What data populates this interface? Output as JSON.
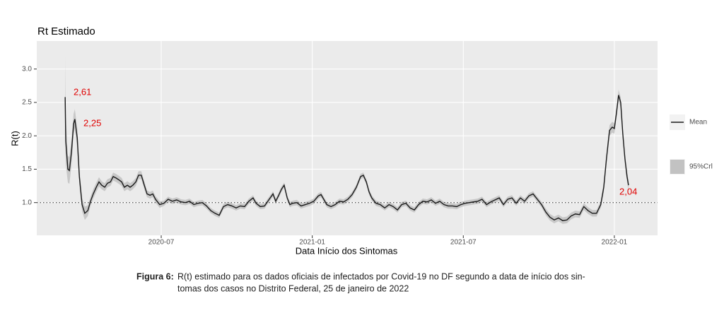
{
  "chart_data": {
    "type": "line",
    "title": "Rt Estimado",
    "x_label": "Data Início dos Sintomas",
    "y_label": "R(t)",
    "xlim": [
      2020.088,
      2022.143
    ],
    "xticks": [
      {
        "value": 2020.5,
        "label": "2020-07"
      },
      {
        "value": 2021.0,
        "label": "2021-01"
      },
      {
        "value": 2021.5,
        "label": "2021-07"
      },
      {
        "value": 2022.0,
        "label": "2022-01"
      }
    ],
    "ylim": [
      0.51,
      3.42
    ],
    "yticks": [
      {
        "value": 1,
        "label": "1.0"
      },
      {
        "value": 1.5,
        "label": "1.5"
      },
      {
        "value": 2,
        "label": "2.0"
      },
      {
        "value": 2.5,
        "label": "2.5"
      },
      {
        "value": 3,
        "label": "3.0"
      }
    ],
    "grid": true,
    "hline": 1,
    "x": [
      2020.182,
      2020.184,
      2020.191,
      2020.196,
      2020.203,
      2020.21,
      2020.214,
      2020.222,
      2020.229,
      2020.238,
      2020.247,
      2020.257,
      2020.266,
      2020.275,
      2020.285,
      2020.294,
      2020.303,
      2020.313,
      2020.322,
      2020.332,
      2020.341,
      2020.35,
      2020.36,
      2020.369,
      2020.378,
      2020.388,
      2020.397,
      2020.406,
      2020.416,
      2020.425,
      2020.434,
      2020.444,
      2020.453,
      2020.463,
      2020.472,
      2020.481,
      2020.495,
      2020.509,
      2020.523,
      2020.537,
      2020.551,
      2020.566,
      2020.58,
      2020.594,
      2020.608,
      2020.622,
      2020.636,
      2020.65,
      2020.664,
      2020.678,
      2020.692,
      2020.706,
      2020.72,
      2020.734,
      2020.748,
      2020.762,
      2020.776,
      2020.79,
      2020.804,
      2020.814,
      2020.828,
      2020.842,
      2020.856,
      2020.87,
      2020.879,
      2020.888,
      2020.898,
      2020.907,
      2020.917,
      2020.926,
      2020.935,
      2020.949,
      2020.963,
      2020.977,
      2020.991,
      2021.005,
      2021.02,
      2021.029,
      2021.038,
      2021.048,
      2021.062,
      2021.076,
      2021.09,
      2021.104,
      2021.118,
      2021.132,
      2021.146,
      2021.16,
      2021.169,
      2021.179,
      2021.188,
      2021.197,
      2021.211,
      2021.225,
      2021.24,
      2021.254,
      2021.268,
      2021.282,
      2021.296,
      2021.31,
      2021.324,
      2021.338,
      2021.352,
      2021.366,
      2021.38,
      2021.394,
      2021.408,
      2021.422,
      2021.436,
      2021.45,
      2021.464,
      2021.478,
      2021.492,
      2021.506,
      2021.52,
      2021.534,
      2021.548,
      2021.562,
      2021.577,
      2021.591,
      2021.605,
      2021.619,
      2021.633,
      2021.647,
      2021.661,
      2021.675,
      2021.689,
      2021.703,
      2021.717,
      2021.731,
      2021.745,
      2021.759,
      2021.773,
      2021.787,
      2021.801,
      2021.815,
      2021.829,
      2021.843,
      2021.857,
      2021.871,
      2021.885,
      2021.899,
      2021.913,
      2021.927,
      2021.941,
      2021.955,
      2021.965,
      2021.974,
      2021.984,
      2021.993,
      2022.0,
      2022.007,
      2022.014,
      2022.021,
      2022.028,
      2022.035,
      2022.042,
      2022.047
    ],
    "series": [
      {
        "name": "Mean",
        "color": "#1a1a1a",
        "values": [
          2.58,
          1.92,
          1.5,
          1.48,
          1.76,
          2.18,
          2.25,
          1.97,
          1.39,
          0.97,
          0.84,
          0.88,
          1.02,
          1.13,
          1.23,
          1.31,
          1.26,
          1.23,
          1.29,
          1.31,
          1.39,
          1.37,
          1.34,
          1.31,
          1.23,
          1.26,
          1.23,
          1.26,
          1.31,
          1.41,
          1.41,
          1.26,
          1.13,
          1.11,
          1.13,
          1.05,
          0.97,
          0.99,
          1.05,
          1.02,
          1.04,
          1.01,
          1.0,
          1.02,
          0.97,
          0.99,
          1.0,
          0.95,
          0.88,
          0.84,
          0.81,
          0.94,
          0.97,
          0.95,
          0.92,
          0.95,
          0.94,
          1.02,
          1.07,
          0.99,
          0.94,
          0.95,
          1.04,
          1.13,
          1.02,
          1.1,
          1.2,
          1.26,
          1.07,
          0.97,
          0.99,
          1.0,
          0.95,
          0.97,
          0.99,
          1.02,
          1.1,
          1.12,
          1.05,
          0.97,
          0.94,
          0.97,
          1.02,
          1.01,
          1.05,
          1.12,
          1.23,
          1.39,
          1.41,
          1.31,
          1.16,
          1.07,
          0.99,
          0.97,
          0.92,
          0.97,
          0.94,
          0.89,
          0.97,
          0.99,
          0.92,
          0.89,
          0.97,
          1.02,
          1.01,
          1.04,
          0.99,
          1.02,
          0.97,
          0.95,
          0.95,
          0.94,
          0.97,
          0.99,
          1.0,
          1.01,
          1.02,
          1.05,
          0.97,
          1.01,
          1.04,
          1.07,
          0.97,
          1.05,
          1.07,
          0.99,
          1.07,
          1.02,
          1.1,
          1.13,
          1.05,
          0.97,
          0.86,
          0.78,
          0.74,
          0.77,
          0.73,
          0.74,
          0.8,
          0.83,
          0.82,
          0.94,
          0.88,
          0.84,
          0.84,
          0.97,
          1.23,
          1.66,
          2.08,
          2.13,
          2.11,
          2.34,
          2.61,
          2.5,
          2.03,
          1.66,
          1.39,
          1.26
        ]
      },
      {
        "name": "95%Crl",
        "color": "#c2c2c2",
        "lower": [
          1.98,
          1.57,
          1.3,
          1.28,
          1.56,
          2.03,
          2.1,
          1.82,
          1.27,
          0.87,
          0.74,
          0.8,
          0.95,
          1.06,
          1.16,
          1.24,
          1.2,
          1.17,
          1.23,
          1.25,
          1.33,
          1.31,
          1.28,
          1.25,
          1.17,
          1.2,
          1.17,
          1.2,
          1.25,
          1.35,
          1.35,
          1.2,
          1.08,
          1.06,
          1.08,
          1.0,
          0.92,
          0.95,
          1.01,
          0.98,
          1.0,
          0.97,
          0.96,
          0.98,
          0.93,
          0.95,
          0.96,
          0.91,
          0.84,
          0.8,
          0.77,
          0.9,
          0.93,
          0.91,
          0.88,
          0.91,
          0.9,
          0.98,
          1.03,
          0.95,
          0.9,
          0.91,
          1.0,
          1.09,
          0.98,
          1.06,
          1.16,
          1.22,
          1.03,
          0.93,
          0.95,
          0.96,
          0.91,
          0.93,
          0.95,
          0.98,
          1.06,
          1.08,
          1.01,
          0.93,
          0.9,
          0.93,
          0.98,
          0.97,
          1.01,
          1.08,
          1.19,
          1.35,
          1.37,
          1.27,
          1.12,
          1.03,
          0.95,
          0.93,
          0.88,
          0.93,
          0.9,
          0.85,
          0.93,
          0.95,
          0.88,
          0.85,
          0.93,
          0.98,
          0.97,
          1.0,
          0.95,
          0.98,
          0.93,
          0.91,
          0.91,
          0.9,
          0.93,
          0.95,
          0.96,
          0.97,
          0.98,
          1.01,
          0.93,
          0.97,
          1.0,
          1.03,
          0.93,
          1.01,
          1.03,
          0.95,
          1.03,
          0.98,
          1.06,
          1.09,
          1.01,
          0.93,
          0.81,
          0.73,
          0.69,
          0.72,
          0.68,
          0.69,
          0.75,
          0.78,
          0.77,
          0.89,
          0.83,
          0.79,
          0.79,
          0.92,
          1.15,
          1.58,
          2.0,
          2.05,
          2.03,
          2.26,
          2.53,
          2.42,
          1.95,
          1.58,
          1.31,
          1.18
        ],
        "upper": [
          3.18,
          2.27,
          1.7,
          1.68,
          1.96,
          2.33,
          2.4,
          2.12,
          1.51,
          1.07,
          0.94,
          0.96,
          1.09,
          1.2,
          1.3,
          1.38,
          1.32,
          1.29,
          1.35,
          1.37,
          1.45,
          1.43,
          1.4,
          1.37,
          1.29,
          1.32,
          1.29,
          1.32,
          1.37,
          1.47,
          1.47,
          1.32,
          1.18,
          1.16,
          1.18,
          1.1,
          1.02,
          1.03,
          1.09,
          1.06,
          1.08,
          1.05,
          1.04,
          1.06,
          1.01,
          1.03,
          1.04,
          0.99,
          0.92,
          0.88,
          0.85,
          0.98,
          1.01,
          0.99,
          0.96,
          0.99,
          0.98,
          1.06,
          1.11,
          1.03,
          0.98,
          0.99,
          1.08,
          1.17,
          1.06,
          1.14,
          1.24,
          1.3,
          1.11,
          1.01,
          1.03,
          1.04,
          0.99,
          1.01,
          1.03,
          1.06,
          1.14,
          1.16,
          1.09,
          1.01,
          0.98,
          1.01,
          1.06,
          1.05,
          1.09,
          1.16,
          1.27,
          1.43,
          1.45,
          1.35,
          1.2,
          1.11,
          1.03,
          1.01,
          0.96,
          1.01,
          0.98,
          0.93,
          1.01,
          1.03,
          0.96,
          0.93,
          1.01,
          1.06,
          1.05,
          1.08,
          1.03,
          1.06,
          1.01,
          0.99,
          0.99,
          0.98,
          1.01,
          1.03,
          1.04,
          1.05,
          1.06,
          1.09,
          1.01,
          1.05,
          1.08,
          1.11,
          1.01,
          1.09,
          1.11,
          1.03,
          1.11,
          1.06,
          1.14,
          1.17,
          1.09,
          1.01,
          0.91,
          0.83,
          0.79,
          0.82,
          0.78,
          0.79,
          0.85,
          0.88,
          0.87,
          0.99,
          0.93,
          0.89,
          0.89,
          1.02,
          1.31,
          1.74,
          2.16,
          2.21,
          2.19,
          2.42,
          2.69,
          2.58,
          2.11,
          1.74,
          1.47,
          1.34
        ]
      }
    ],
    "annotations": [
      "2,61",
      "2,25",
      "2,04"
    ],
    "annotation_color": "#e00000",
    "caption": {
      "label": "Figura 6:",
      "lines": [
        "R(t) estimado para os dados oficiais de infectados por Covid-19 no DF segundo a data de início dos sin-",
        "tomas dos casos no Distrito Federal, 25 de janeiro de 2022"
      ]
    }
  }
}
